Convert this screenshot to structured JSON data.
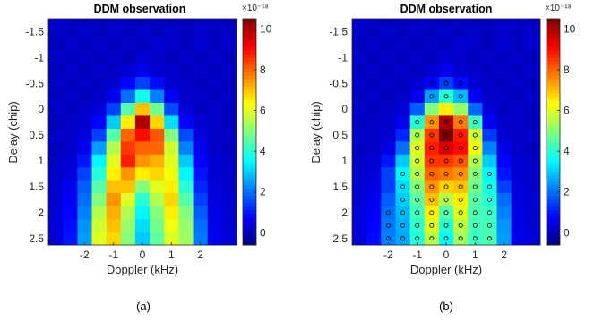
{
  "chart_data": [
    {
      "type": "heatmap",
      "panel": "(a)",
      "title": "DDM observation",
      "xlabel": "Doppler (kHz)",
      "ylabel": "Delay (chip)",
      "x": [
        -3,
        -2.5,
        -2,
        -1.5,
        -1,
        -0.5,
        0,
        0.5,
        1,
        1.5,
        2,
        2.5,
        3
      ],
      "y": [
        -1.75,
        -1.5,
        -1.25,
        -1,
        -0.75,
        -0.5,
        -0.25,
        0,
        0.25,
        0.5,
        0.75,
        1,
        1.25,
        1.5,
        1.75,
        2,
        2.25,
        2.5
      ],
      "xlim": [
        -3.25,
        3.25
      ],
      "ylim": [
        -1.75,
        2.625
      ],
      "xticks": [
        "-2",
        "-1",
        "0",
        "1",
        "2"
      ],
      "yticks": [
        "-1.5",
        "-1",
        "-0.5",
        "0",
        "0.5",
        "1",
        "1.5",
        "2",
        "2.5"
      ],
      "z": [
        [
          0.3,
          0.2,
          0.1,
          0.1,
          0.2,
          0.2,
          0.1,
          0.2,
          0.1,
          0.1,
          0.2,
          0.2,
          0.1
        ],
        [
          0.2,
          0.1,
          0.2,
          0.1,
          0.2,
          0.1,
          0.2,
          0.1,
          0.2,
          0.1,
          0.2,
          0.1,
          0.2
        ],
        [
          0.1,
          0.2,
          0.1,
          0.2,
          0.1,
          0.2,
          0.1,
          0.3,
          0.2,
          0.1,
          0.3,
          0.1,
          0.2
        ],
        [
          0.2,
          0.1,
          0.2,
          0.1,
          0.2,
          0.1,
          0.3,
          0.2,
          0.1,
          0.2,
          0.1,
          0.2,
          0.1
        ],
        [
          0.1,
          0.2,
          0.1,
          0.2,
          0.1,
          0.3,
          0.6,
          0.3,
          0.2,
          0.1,
          0.2,
          0.1,
          0.2
        ],
        [
          0.2,
          0.1,
          0.2,
          0.1,
          0.3,
          0.8,
          1.5,
          0.9,
          0.3,
          0.2,
          0.1,
          0.2,
          0.1
        ],
        [
          0.1,
          0.2,
          0.1,
          0.2,
          0.6,
          2.0,
          3.8,
          2.2,
          0.7,
          0.2,
          0.2,
          0.1,
          0.2
        ],
        [
          0.2,
          0.1,
          0.2,
          0.4,
          1.5,
          4.5,
          7.0,
          4.8,
          1.6,
          0.4,
          0.1,
          0.2,
          0.1
        ],
        [
          0.1,
          0.2,
          0.3,
          0.8,
          3.0,
          6.5,
          10.0,
          6.8,
          3.2,
          0.8,
          0.3,
          0.2,
          0.1
        ],
        [
          0.2,
          0.2,
          0.4,
          1.5,
          4.5,
          8.0,
          9.0,
          8.2,
          5.0,
          1.6,
          0.4,
          0.2,
          0.2
        ],
        [
          0.1,
          0.2,
          0.6,
          2.5,
          5.5,
          8.5,
          8.0,
          8.0,
          5.8,
          2.2,
          0.6,
          0.2,
          0.1
        ],
        [
          0.2,
          0.3,
          1.0,
          3.5,
          6.0,
          8.8,
          7.5,
          7.2,
          6.0,
          3.0,
          0.8,
          0.3,
          0.2
        ],
        [
          0.2,
          0.4,
          1.5,
          4.0,
          6.5,
          7.5,
          6.5,
          6.8,
          6.2,
          3.5,
          1.0,
          0.3,
          0.2
        ],
        [
          0.3,
          0.6,
          1.8,
          4.5,
          7.0,
          7.0,
          5.0,
          6.0,
          6.5,
          4.0,
          1.2,
          0.4,
          0.2
        ],
        [
          0.3,
          0.7,
          2.0,
          5.0,
          7.5,
          6.0,
          4.0,
          5.5,
          6.8,
          4.5,
          1.5,
          0.4,
          0.3
        ],
        [
          0.4,
          0.8,
          2.2,
          5.5,
          7.2,
          5.5,
          3.5,
          5.0,
          6.5,
          5.0,
          1.8,
          0.5,
          0.3
        ],
        [
          0.4,
          0.9,
          2.4,
          5.8,
          7.0,
          5.2,
          3.2,
          4.8,
          6.2,
          5.2,
          2.0,
          0.5,
          0.3
        ],
        [
          0.4,
          1.0,
          2.5,
          6.0,
          6.8,
          5.0,
          3.0,
          4.6,
          6.0,
          5.3,
          2.1,
          0.6,
          0.4
        ]
      ],
      "colorbar": {
        "min": -0.6,
        "max": 10.5,
        "ticks": [
          "0",
          "2",
          "4",
          "6",
          "8",
          "10"
        ],
        "exponent_label": "×10⁻¹⁸"
      }
    },
    {
      "type": "heatmap",
      "panel": "(b)",
      "title": "DDM observation",
      "xlabel": "Doppler (kHz)",
      "ylabel": "Delay (chip)",
      "x": [
        -3,
        -2.5,
        -2,
        -1.5,
        -1,
        -0.5,
        0,
        0.5,
        1,
        1.5,
        2,
        2.5,
        3
      ],
      "y": [
        -1.75,
        -1.5,
        -1.25,
        -1,
        -0.75,
        -0.5,
        -0.25,
        0,
        0.25,
        0.5,
        0.75,
        1,
        1.25,
        1.5,
        1.75,
        2,
        2.25,
        2.5
      ],
      "xlim": [
        -3.25,
        3.25
      ],
      "ylim": [
        -1.75,
        2.625
      ],
      "xticks": [
        "-2",
        "-1",
        "0",
        "1",
        "2"
      ],
      "yticks": [
        "-1.5",
        "-1",
        "-0.5",
        "0",
        "0.5",
        "1",
        "1.5",
        "2",
        "2.5"
      ],
      "z": [
        [
          0.3,
          0.2,
          0.1,
          0.1,
          0.2,
          0.2,
          0.1,
          0.2,
          0.1,
          0.1,
          0.2,
          0.2,
          0.1
        ],
        [
          0.2,
          0.1,
          0.2,
          0.1,
          0.2,
          0.1,
          0.2,
          0.1,
          0.2,
          0.1,
          0.2,
          0.1,
          0.2
        ],
        [
          0.1,
          0.2,
          0.1,
          0.2,
          0.1,
          0.2,
          0.1,
          0.3,
          0.2,
          0.1,
          0.3,
          0.1,
          0.2
        ],
        [
          0.2,
          0.1,
          0.2,
          0.1,
          0.2,
          0.1,
          0.3,
          0.2,
          0.1,
          0.2,
          0.1,
          0.2,
          0.1
        ],
        [
          0.1,
          0.2,
          0.1,
          0.2,
          0.1,
          0.3,
          0.6,
          0.3,
          0.2,
          0.1,
          0.2,
          0.1,
          0.2
        ],
        [
          0.2,
          0.1,
          0.2,
          0.1,
          0.3,
          0.8,
          1.5,
          0.9,
          0.3,
          0.2,
          0.1,
          0.2,
          0.1
        ],
        [
          0.1,
          0.2,
          0.1,
          0.2,
          0.6,
          2.5,
          4.0,
          2.8,
          0.7,
          0.2,
          0.2,
          0.1,
          0.2
        ],
        [
          0.2,
          0.1,
          0.2,
          0.3,
          1.8,
          5.0,
          6.5,
          5.2,
          1.9,
          0.4,
          0.1,
          0.2,
          0.1
        ],
        [
          0.1,
          0.2,
          0.2,
          0.6,
          4.0,
          7.5,
          10.0,
          7.8,
          4.2,
          0.7,
          0.2,
          0.2,
          0.1
        ],
        [
          0.2,
          0.2,
          0.3,
          1.2,
          5.5,
          8.5,
          10.5,
          8.8,
          5.8,
          1.4,
          0.3,
          0.2,
          0.2
        ],
        [
          0.1,
          0.2,
          0.5,
          2.0,
          6.0,
          8.8,
          9.5,
          9.0,
          6.2,
          2.2,
          0.5,
          0.2,
          0.1
        ],
        [
          0.2,
          0.3,
          1.0,
          3.0,
          5.8,
          8.5,
          8.5,
          8.2,
          5.5,
          3.0,
          0.8,
          0.3,
          0.2
        ],
        [
          0.2,
          0.4,
          1.5,
          3.5,
          5.5,
          8.0,
          7.8,
          7.5,
          5.0,
          3.5,
          1.0,
          0.3,
          0.2
        ],
        [
          0.3,
          0.5,
          1.5,
          3.2,
          5.0,
          7.5,
          6.8,
          7.0,
          4.8,
          3.8,
          1.5,
          0.4,
          0.2
        ],
        [
          0.3,
          0.6,
          1.8,
          3.0,
          4.6,
          7.0,
          5.5,
          6.5,
          4.5,
          4.0,
          2.0,
          0.4,
          0.3
        ],
        [
          0.4,
          0.7,
          2.0,
          2.8,
          4.3,
          6.5,
          4.5,
          6.0,
          4.4,
          4.2,
          2.2,
          0.5,
          0.3
        ],
        [
          0.4,
          0.8,
          2.1,
          2.7,
          4.1,
          6.0,
          4.0,
          5.6,
          4.3,
          4.3,
          2.4,
          0.5,
          0.3
        ],
        [
          0.4,
          0.9,
          2.2,
          2.6,
          4.0,
          5.6,
          3.6,
          5.3,
          4.2,
          4.4,
          2.5,
          0.6,
          0.4
        ]
      ],
      "markers": [
        [
          -0.5,
          -0.5
        ],
        [
          0,
          -0.5
        ],
        [
          0.5,
          -0.5
        ],
        [
          -0.5,
          -0.25
        ],
        [
          0,
          -0.25
        ],
        [
          0.5,
          -0.25
        ],
        [
          -1,
          0.25
        ],
        [
          -0.5,
          0.25
        ],
        [
          0,
          0.25
        ],
        [
          0.5,
          0.25
        ],
        [
          1,
          0.25
        ],
        [
          -1,
          0.5
        ],
        [
          -0.5,
          0.5
        ],
        [
          0,
          0.5
        ],
        [
          0.5,
          0.5
        ],
        [
          1,
          0.5
        ],
        [
          -1,
          0.75
        ],
        [
          -0.5,
          0.75
        ],
        [
          0,
          0.75
        ],
        [
          0.5,
          0.75
        ],
        [
          1,
          0.75
        ],
        [
          -1,
          1
        ],
        [
          -0.5,
          1
        ],
        [
          0,
          1
        ],
        [
          0.5,
          1
        ],
        [
          1,
          1
        ],
        [
          -1.5,
          1.25
        ],
        [
          -1,
          1.25
        ],
        [
          -0.5,
          1.25
        ],
        [
          0,
          1.25
        ],
        [
          0.5,
          1.25
        ],
        [
          1,
          1.25
        ],
        [
          1.5,
          1.25
        ],
        [
          -1.5,
          1.5
        ],
        [
          -1,
          1.5
        ],
        [
          -0.5,
          1.5
        ],
        [
          0,
          1.5
        ],
        [
          0.5,
          1.5
        ],
        [
          1,
          1.5
        ],
        [
          1.5,
          1.5
        ],
        [
          -1.5,
          1.75
        ],
        [
          -1,
          1.75
        ],
        [
          -0.5,
          1.75
        ],
        [
          0,
          1.75
        ],
        [
          0.5,
          1.75
        ],
        [
          1,
          1.75
        ],
        [
          1.5,
          1.75
        ],
        [
          -2,
          2
        ],
        [
          -1.5,
          2
        ],
        [
          -1,
          2
        ],
        [
          -0.5,
          2
        ],
        [
          0,
          2
        ],
        [
          0.5,
          2
        ],
        [
          1,
          2
        ],
        [
          1.5,
          2
        ],
        [
          -2,
          2.25
        ],
        [
          -1.5,
          2.25
        ],
        [
          -1,
          2.25
        ],
        [
          -0.5,
          2.25
        ],
        [
          0,
          2.25
        ],
        [
          0.5,
          2.25
        ],
        [
          1,
          2.25
        ],
        [
          1.5,
          2.25
        ],
        [
          -2,
          2.5
        ],
        [
          -1.5,
          2.5
        ],
        [
          -1,
          2.5
        ],
        [
          -0.5,
          2.5
        ],
        [
          0,
          2.5
        ],
        [
          0.5,
          2.5
        ],
        [
          1,
          2.5
        ],
        [
          1.5,
          2.5
        ]
      ],
      "colorbar": {
        "min": -0.6,
        "max": 10.5,
        "ticks": [
          "0",
          "2",
          "4",
          "6",
          "8",
          "10"
        ],
        "exponent_label": "×10⁻¹⁸"
      }
    }
  ],
  "captions": [
    "(a)",
    "(b)"
  ]
}
